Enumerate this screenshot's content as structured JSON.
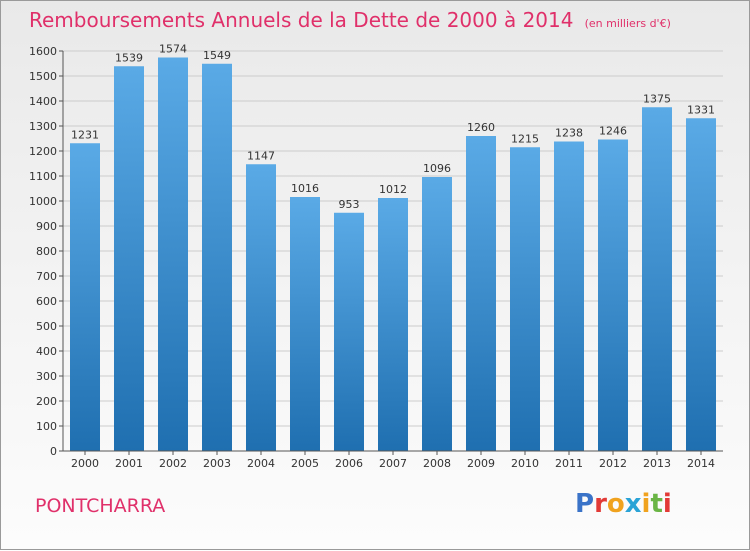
{
  "header": {
    "title": "Remboursements Annuels de la Dette de 2000 à 2014",
    "subtitle": "(en milliers d'€)"
  },
  "footer": {
    "town": "PONTCHARRA",
    "logo_letters": [
      "P",
      "r",
      "o",
      "x",
      "i",
      "t",
      "i"
    ],
    "logo_colors": [
      "#3a73c8",
      "#e23a36",
      "#f0a21e",
      "#2aa3d6",
      "#f0a21e",
      "#6ab545",
      "#e23a36"
    ]
  },
  "colors": {
    "title": "#e0306a",
    "bar_light": "#5aaae6",
    "bar_dark": "#1f6fb0",
    "grid": "#cccccc",
    "axis": "#555555"
  },
  "chart_data": {
    "type": "bar",
    "title": "Remboursements Annuels de la Dette de 2000 à 2014",
    "subtitle": "(en milliers d'€)",
    "xlabel": "",
    "ylabel": "",
    "categories": [
      "2000",
      "2001",
      "2002",
      "2003",
      "2004",
      "2005",
      "2006",
      "2007",
      "2008",
      "2009",
      "2010",
      "2011",
      "2012",
      "2013",
      "2014"
    ],
    "values": [
      1231,
      1539,
      1574,
      1549,
      1147,
      1016,
      953,
      1012,
      1096,
      1260,
      1215,
      1238,
      1246,
      1375,
      1331
    ],
    "ylim": [
      0,
      1600
    ],
    "yticks": [
      0,
      100,
      200,
      300,
      400,
      500,
      600,
      700,
      800,
      900,
      1000,
      1100,
      1200,
      1300,
      1400,
      1500,
      1600
    ],
    "grid": true
  }
}
